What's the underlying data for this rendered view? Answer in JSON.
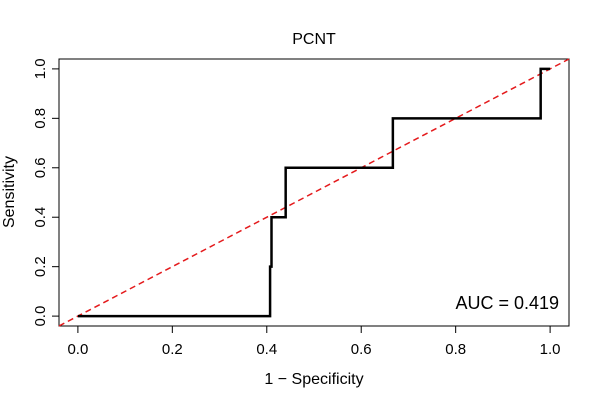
{
  "chart_data": {
    "type": "line",
    "title": "PCNT",
    "xlabel": "1 − Specificity",
    "ylabel": "Sensitivity",
    "xlim": [
      -0.04,
      1.04
    ],
    "ylim": [
      -0.04,
      1.04
    ],
    "x_ticks": [
      0.0,
      0.2,
      0.4,
      0.6,
      0.8,
      1.0
    ],
    "x_tick_labels": [
      "0.0",
      "0.2",
      "0.4",
      "0.6",
      "0.8",
      "1.0"
    ],
    "y_ticks": [
      0.0,
      0.2,
      0.4,
      0.6,
      0.8,
      1.0
    ],
    "y_tick_labels": [
      "0.0",
      "0.2",
      "0.4",
      "0.6",
      "0.8",
      "1.0"
    ],
    "grid": false,
    "series": [
      {
        "name": "ROC curve",
        "color": "#000000",
        "style": "solid",
        "x": [
          0.0,
          0.407,
          0.407,
          0.41,
          0.41,
          0.44,
          0.44,
          0.667,
          0.667,
          0.98,
          0.98,
          1.0
        ],
        "y": [
          0.0,
          0.0,
          0.2,
          0.2,
          0.4,
          0.4,
          0.6,
          0.6,
          0.8,
          0.8,
          1.0,
          1.0
        ]
      },
      {
        "name": "Reference line",
        "color": "#e41a1c",
        "style": "dashed",
        "x": [
          -0.04,
          1.04
        ],
        "y": [
          -0.04,
          1.04
        ]
      }
    ],
    "annotations": [
      {
        "text": "AUC = 0.419",
        "position": "bottom-right"
      }
    ]
  }
}
